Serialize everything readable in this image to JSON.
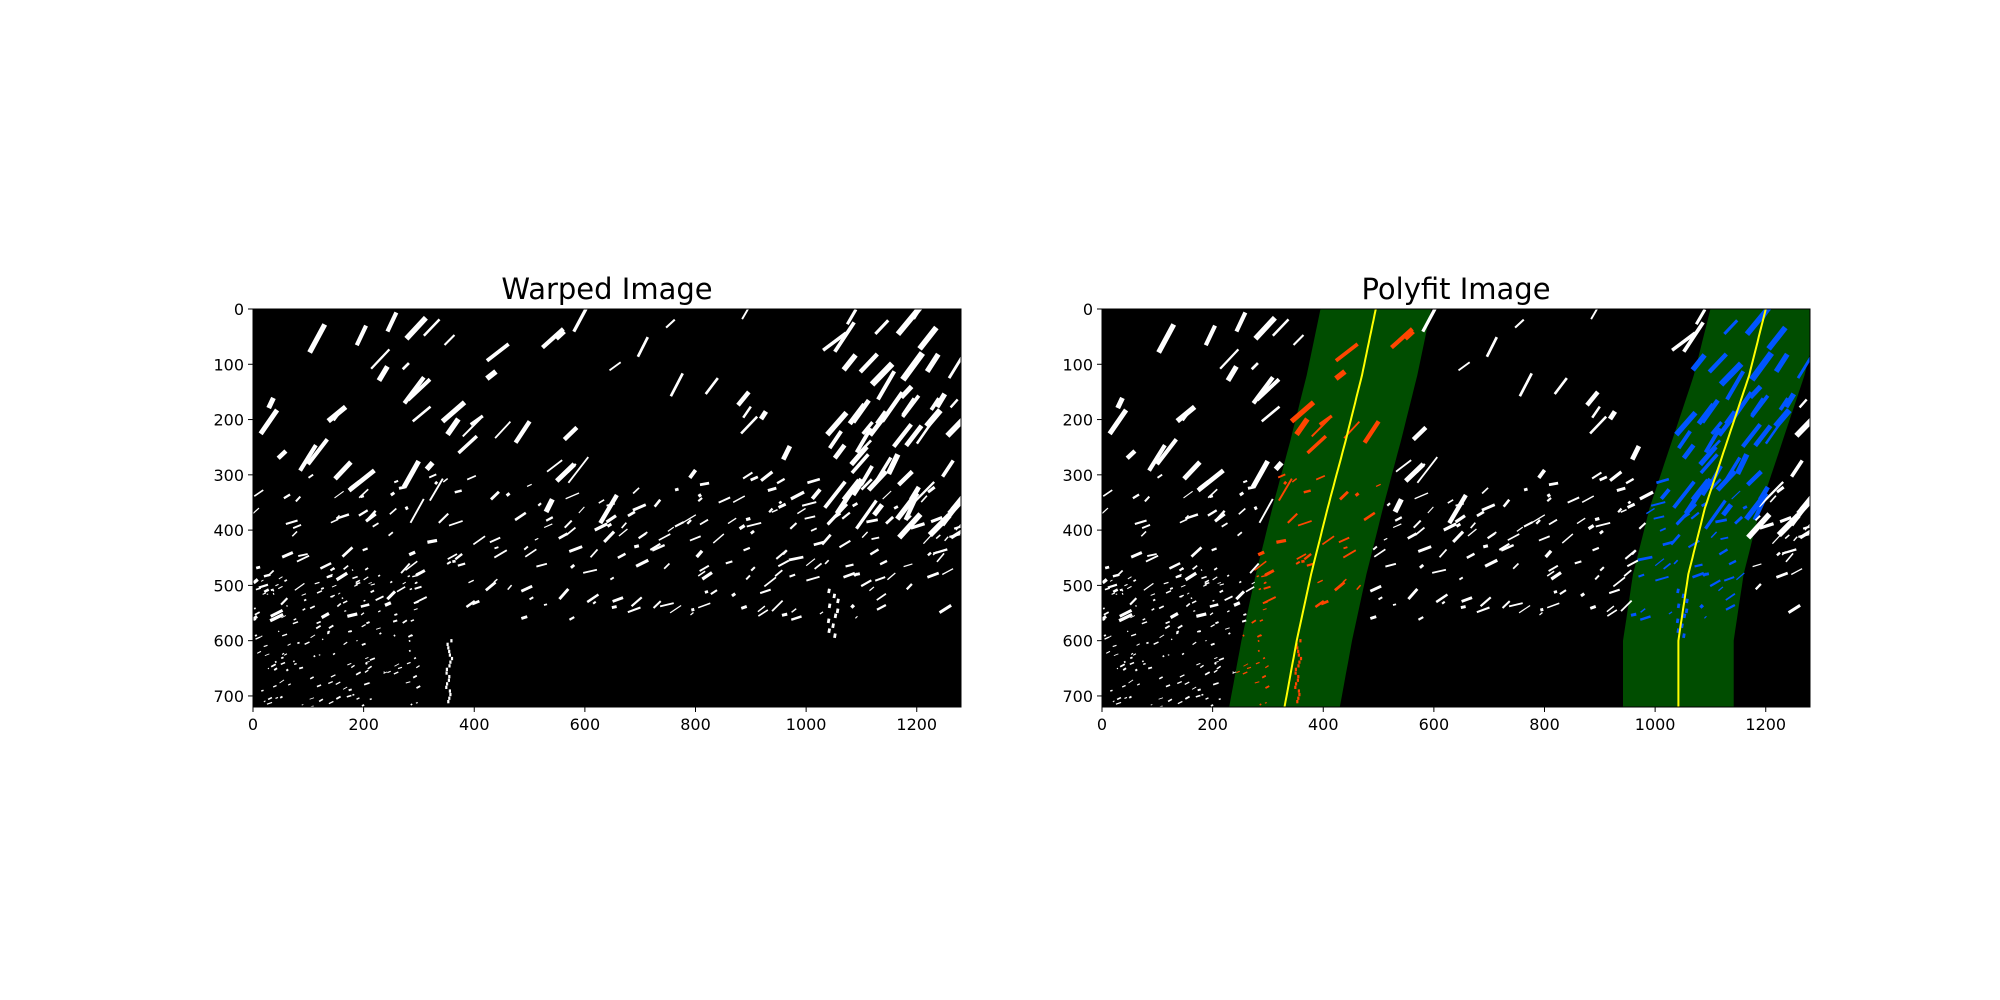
{
  "chart_data": [
    {
      "type": "image",
      "title": "Warped Image",
      "x_ticks": [
        0,
        200,
        400,
        600,
        800,
        1000,
        1200
      ],
      "y_ticks": [
        0,
        100,
        200,
        300,
        400,
        500,
        600,
        700
      ],
      "xlim": [
        0,
        1280
      ],
      "ylim": [
        720,
        0
      ],
      "grid": false,
      "colors": {
        "background": "#000000",
        "pixels": "#ffffff"
      }
    },
    {
      "type": "image",
      "title": "Polyfit Image",
      "x_ticks": [
        0,
        200,
        400,
        600,
        800,
        1000,
        1200
      ],
      "y_ticks": [
        0,
        100,
        200,
        300,
        400,
        500,
        600,
        700
      ],
      "xlim": [
        0,
        1280
      ],
      "ylim": [
        720,
        0
      ],
      "grid": false,
      "colors": {
        "background": "#000000",
        "pixels": "#ffffff",
        "band": "#004d00",
        "left_lane": "#ff4500",
        "right_lane": "#0055ff",
        "fit_line": "#ffff00"
      },
      "series": [
        {
          "values": [
            [
              330,
              720
            ],
            [
              352,
              600
            ],
            [
              378,
              480
            ],
            [
              408,
              360
            ],
            [
              440,
              240
            ],
            [
              470,
              120
            ],
            [
              495,
              0
            ]
          ]
        },
        {
          "values": [
            [
              1042,
              720
            ],
            [
              1042,
              600
            ],
            [
              1060,
              480
            ],
            [
              1090,
              360
            ],
            [
              1130,
              240
            ],
            [
              1170,
              120
            ],
            [
              1200,
              0
            ]
          ]
        }
      ],
      "band_half_width": 100
    }
  ]
}
